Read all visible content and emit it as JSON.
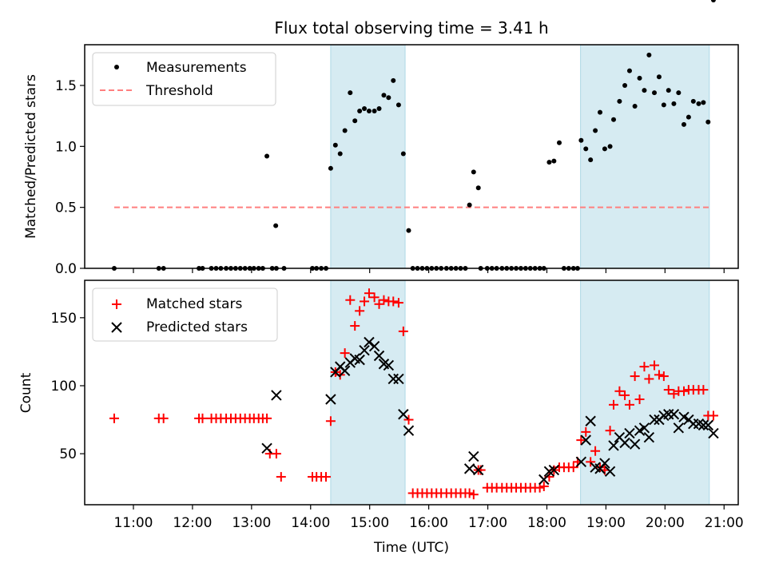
{
  "chart_data": [
    {
      "type": "scatter",
      "title": "Flux total observing time = 3.41 h",
      "xlabel": "",
      "ylabel": "Matched/Predicted stars",
      "xlim_hours": [
        10.175,
        21.24
      ],
      "ylim": [
        0,
        1.834
      ],
      "yticks": [
        0.0,
        0.5,
        1.0,
        1.5
      ],
      "ytick_labels": [
        "0.0",
        "0.5",
        "1.0",
        "1.5"
      ],
      "legend": {
        "placement": "top-left",
        "entries": [
          "Measurements",
          "Threshold"
        ]
      },
      "shaded_spans_hours": [
        [
          14.34,
          15.6
        ],
        [
          18.57,
          20.75
        ]
      ],
      "threshold": {
        "name": "Threshold",
        "value": 0.5,
        "x_range_hours": [
          10.675,
          20.75
        ],
        "color": "#ff7f7f",
        "style": "dashed"
      },
      "series": [
        {
          "name": "Measurements",
          "marker": "dot",
          "color": "#000000",
          "x_hours": [
            10.675,
            11.43,
            11.51,
            12.11,
            12.17,
            12.32,
            12.4,
            12.48,
            12.57,
            12.65,
            12.73,
            12.81,
            12.89,
            12.97,
            13.04,
            13.12,
            13.19,
            13.26,
            13.35,
            13.41,
            13.42,
            13.55,
            14.03,
            14.1,
            14.18,
            14.26,
            14.34,
            14.42,
            14.5,
            14.58,
            14.67,
            14.75,
            14.83,
            14.91,
            14.99,
            15.08,
            15.16,
            15.24,
            15.32,
            15.4,
            15.49,
            15.57,
            15.66,
            15.73,
            15.81,
            15.89,
            15.97,
            16.05,
            16.13,
            16.21,
            16.3,
            16.38,
            16.46,
            16.54,
            16.62,
            16.69,
            16.76,
            16.84,
            16.88,
            16.99,
            17.07,
            17.15,
            17.24,
            17.32,
            17.4,
            17.48,
            17.56,
            17.64,
            17.72,
            17.8,
            17.88,
            17.95,
            18.04,
            18.12,
            18.21,
            18.29,
            18.37,
            18.45,
            18.52,
            18.58,
            18.66,
            18.74,
            18.82,
            18.9,
            18.98,
            19.07,
            19.13,
            19.23,
            19.32,
            19.4,
            19.49,
            19.57,
            19.65,
            19.73,
            19.82,
            19.9,
            19.98,
            20.06,
            20.15,
            20.23,
            20.32,
            20.4,
            20.48,
            20.57,
            20.65,
            20.73,
            20.82
          ],
          "y": [
            0,
            0,
            0,
            0,
            0,
            0,
            0,
            0,
            0,
            0,
            0,
            0,
            0,
            0,
            0,
            0,
            0,
            0.92,
            0,
            0.35,
            0,
            0,
            0,
            0,
            0,
            0,
            0.82,
            1.01,
            0.94,
            1.13,
            1.44,
            1.21,
            1.29,
            1.31,
            1.29,
            1.29,
            1.31,
            1.42,
            1.4,
            1.54,
            1.34,
            0.94,
            0.31,
            0,
            0,
            0,
            0,
            0,
            0,
            0,
            0,
            0,
            0,
            0,
            0,
            0.52,
            0.79,
            0.66,
            0,
            0,
            0,
            0,
            0,
            0,
            0,
            0,
            0,
            0,
            0,
            0,
            0,
            0,
            0.87,
            0.88,
            1.03,
            0,
            0,
            0,
            0,
            1.05,
            0.98,
            0.89,
            1.13,
            1.28,
            0.98,
            1.0,
            1.22,
            1.37,
            1.5,
            1.62,
            1.33,
            1.56,
            1.46,
            1.75,
            1.44,
            1.57,
            1.34,
            1.46,
            1.35,
            1.44,
            1.18,
            1.24,
            1.37,
            1.35,
            1.36,
            1.2
          ]
        }
      ]
    },
    {
      "type": "scatter",
      "title": "",
      "xlabel": "Time (UTC)",
      "ylabel": "Count",
      "xlim_hours": [
        10.175,
        21.24
      ],
      "ylim": [
        12.5,
        177.5
      ],
      "yticks": [
        50,
        100,
        150
      ],
      "ytick_labels": [
        "50",
        "100",
        "150"
      ],
      "xticks_hours": [
        11,
        12,
        13,
        14,
        15,
        16,
        17,
        18,
        19,
        20,
        21
      ],
      "xtick_labels": [
        "11:00",
        "12:00",
        "13:00",
        "14:00",
        "15:00",
        "16:00",
        "17:00",
        "18:00",
        "19:00",
        "20:00",
        "21:00"
      ],
      "legend": {
        "placement": "top-left",
        "entries": [
          "Matched stars",
          "Predicted stars"
        ]
      },
      "shaded_spans_hours": [
        [
          14.34,
          15.6
        ],
        [
          18.57,
          20.75
        ]
      ],
      "series": [
        {
          "name": "Matched stars",
          "marker": "plus",
          "color": "#ff0000",
          "x_hours": [
            10.675,
            11.43,
            11.51,
            12.11,
            12.17,
            12.32,
            12.4,
            12.48,
            12.57,
            12.65,
            12.73,
            12.81,
            12.89,
            12.97,
            13.04,
            13.12,
            13.19,
            13.26,
            13.31,
            13.42,
            13.5,
            14.03,
            14.1,
            14.18,
            14.26,
            14.34,
            14.42,
            14.5,
            14.58,
            14.67,
            14.75,
            14.83,
            14.91,
            14.99,
            15.08,
            15.16,
            15.24,
            15.32,
            15.4,
            15.49,
            15.57,
            15.66,
            15.73,
            15.81,
            15.89,
            15.97,
            16.05,
            16.13,
            16.21,
            16.3,
            16.38,
            16.46,
            16.54,
            16.62,
            16.69,
            16.76,
            16.84,
            16.88,
            16.99,
            17.07,
            17.15,
            17.24,
            17.32,
            17.4,
            17.48,
            17.56,
            17.64,
            17.72,
            17.8,
            17.88,
            17.95,
            18.04,
            18.12,
            18.21,
            18.29,
            18.37,
            18.45,
            18.52,
            18.58,
            18.66,
            18.74,
            18.82,
            18.9,
            18.98,
            19.07,
            19.13,
            19.23,
            19.32,
            19.4,
            19.49,
            19.57,
            19.65,
            19.73,
            19.82,
            19.9,
            19.98,
            20.06,
            20.15,
            20.23,
            20.32,
            20.4,
            20.48,
            20.57,
            20.65,
            20.73,
            20.82
          ],
          "y": [
            76,
            76,
            76,
            76,
            76,
            76,
            76,
            76,
            76,
            76,
            76,
            76,
            76,
            76,
            76,
            76,
            76,
            76,
            50,
            50,
            33,
            33,
            33,
            33,
            33,
            74,
            110,
            108,
            124,
            163,
            144,
            155,
            162,
            168,
            165,
            160,
            163,
            162,
            162,
            161,
            140,
            75,
            21,
            21,
            21,
            21,
            21,
            21,
            21,
            21,
            21,
            21,
            21,
            21,
            21,
            20,
            38,
            38,
            25,
            25,
            25,
            25,
            25,
            25,
            25,
            25,
            25,
            25,
            25,
            25,
            26,
            33,
            38,
            40,
            40,
            40,
            40,
            44,
            60,
            66,
            44,
            52,
            40,
            38,
            67,
            86,
            96,
            93,
            86,
            107,
            90,
            114,
            105,
            115,
            108,
            107,
            97,
            94,
            96,
            96,
            97,
            97,
            97,
            97,
            78,
            78
          ],
          "note": "sparse-marker series, values estimated from scatter positions"
        },
        {
          "name": "Predicted stars",
          "marker": "x",
          "color": "#000000",
          "x_hours": [
            13.26,
            13.42,
            14.34,
            14.42,
            14.5,
            14.58,
            14.67,
            14.75,
            14.83,
            14.91,
            14.99,
            15.08,
            15.16,
            15.24,
            15.32,
            15.4,
            15.49,
            15.57,
            15.66,
            16.69,
            16.76,
            16.84,
            17.95,
            18.04,
            18.12,
            18.58,
            18.66,
            18.74,
            18.82,
            18.9,
            18.98,
            19.07,
            19.13,
            19.23,
            19.32,
            19.4,
            19.49,
            19.57,
            19.65,
            19.73,
            19.82,
            19.9,
            19.98,
            20.06,
            20.15,
            20.23,
            20.32,
            20.4,
            20.48,
            20.57,
            20.65,
            20.73,
            20.82
          ],
          "y": [
            54,
            93,
            90,
            110,
            114,
            111,
            117,
            120,
            119,
            126,
            132,
            129,
            122,
            116,
            115,
            105,
            105,
            79,
            67,
            39,
            48,
            38,
            31,
            37,
            38,
            44,
            60,
            74,
            40,
            39,
            43,
            37,
            56,
            62,
            58,
            65,
            57,
            67,
            69,
            62,
            75,
            75,
            78,
            79,
            79,
            69,
            77,
            75,
            72,
            72,
            71,
            71,
            65
          ]
        }
      ]
    }
  ]
}
